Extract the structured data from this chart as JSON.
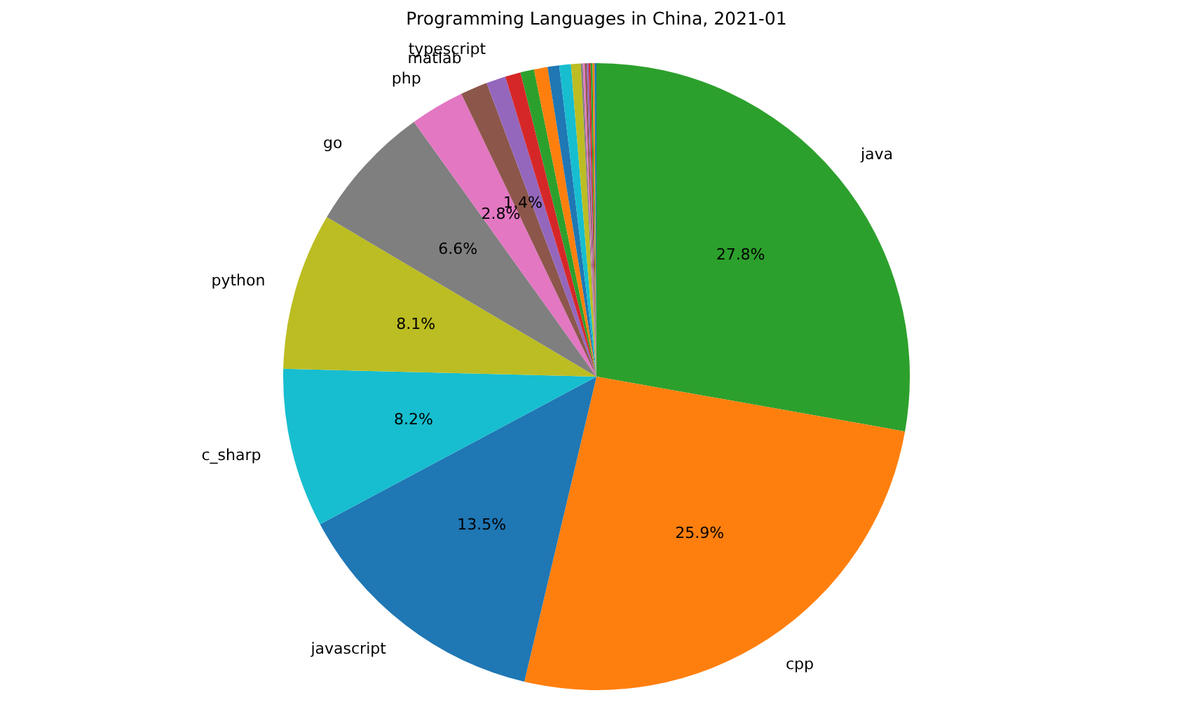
{
  "chart_data": {
    "type": "pie",
    "title": "Programming Languages in China, 2021-01",
    "categories": [
      "java",
      "cpp",
      "javascript",
      "c_sharp",
      "python",
      "go",
      "php",
      "matlab",
      "typescript",
      null,
      null,
      null,
      null,
      null,
      null,
      null,
      null,
      null,
      null,
      null,
      null,
      null,
      null
    ],
    "values": [
      27.8,
      25.9,
      13.5,
      8.2,
      8.1,
      6.6,
      2.8,
      1.4,
      1.0,
      0.8,
      0.7,
      0.7,
      0.6,
      0.6,
      0.5,
      0.1,
      0.1,
      0.1,
      0.1,
      0.1,
      0.1,
      0.1,
      0.1
    ],
    "colors": [
      "#2ca02c",
      "#ff7f0e",
      "#1f77b4",
      "#17becf",
      "#bcbd22",
      "#7f7f7f",
      "#e377c2",
      "#8c564b",
      "#9467bd",
      "#d62728",
      "#2ca02c",
      "#ff7f0e",
      "#1f77b4",
      "#17becf",
      "#bcbd22",
      "#7f7f7f",
      "#e377c2",
      "#8c564b",
      "#9467bd",
      "#d62728",
      "#2ca02c",
      "#ff7f0e",
      "#1f77b4"
    ],
    "value_labels": [
      "27.8%",
      "25.9%",
      "13.5%",
      "8.2%",
      "8.1%",
      "6.6%",
      "2.8%",
      "1.4%",
      null,
      null,
      null,
      null,
      null,
      null,
      null,
      null,
      null,
      null,
      null,
      null,
      null,
      null,
      null
    ],
    "legend": false
  }
}
